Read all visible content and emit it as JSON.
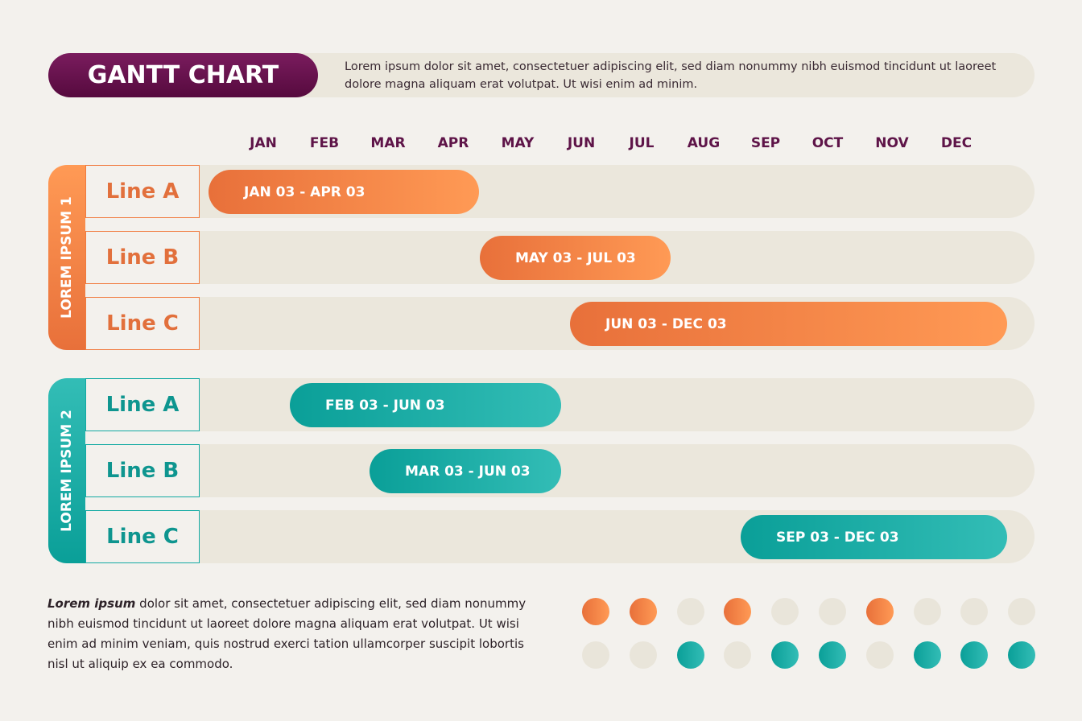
{
  "header": {
    "title": "GANTT CHART",
    "description": "Lorem ipsum dolor sit amet, consectetuer adipiscing elit, sed diam nonummy nibh euismod tincidunt ut laoreet dolore magna aliquam erat volutpat. Ut wisi enim ad minim."
  },
  "colors": {
    "title": "#6b1550",
    "group1": "#f07a3e",
    "group2": "#13aaa3",
    "inactive": "#e9e5da"
  },
  "chart_data": {
    "type": "gantt",
    "title": "GANTT CHART",
    "months": [
      "JAN",
      "FEB",
      "MAR",
      "APR",
      "MAY",
      "JUN",
      "JUL",
      "AUG",
      "SEP",
      "OCT",
      "NOV",
      "DEC"
    ],
    "groups": [
      {
        "name": "LOREM IPSUM 1",
        "color": "#f07a3e",
        "tasks": [
          {
            "name": "Line A",
            "label": "JAN 03 - APR 03",
            "start_month": 1,
            "end_month": 4
          },
          {
            "name": "Line B",
            "label": "MAY 03 - JUL 03",
            "start_month": 5,
            "end_month": 7
          },
          {
            "name": "Line C",
            "label": "JUN 03 - DEC 03",
            "start_month": 6,
            "end_month": 12
          }
        ]
      },
      {
        "name": "LOREM IPSUM 2",
        "color": "#13aaa3",
        "tasks": [
          {
            "name": "Line A",
            "label": "FEB 03 - JUN 03",
            "start_month": 2,
            "end_month": 6
          },
          {
            "name": "Line B",
            "label": "MAR 03 - JUN 03",
            "start_month": 3,
            "end_month": 6
          },
          {
            "name": "Line C",
            "label": "SEP 03 - DEC 03",
            "start_month": 9,
            "end_month": 12
          }
        ]
      }
    ],
    "dot_rows": [
      [
        1,
        1,
        0,
        1,
        0,
        0,
        1,
        0,
        0,
        0
      ],
      [
        0,
        0,
        1,
        0,
        1,
        1,
        0,
        1,
        1,
        1
      ]
    ]
  },
  "footer": {
    "lead": "Lorem ipsum",
    "text": " dolor sit amet, consectetuer adipiscing elit, sed diam nonummy nibh euismod tincidunt ut laoreet dolore magna aliquam erat volutpat. Ut wisi enim ad minim veniam, quis nostrud exerci tation ullamcorper suscipit lobortis nisl ut aliquip ex ea commodo."
  }
}
